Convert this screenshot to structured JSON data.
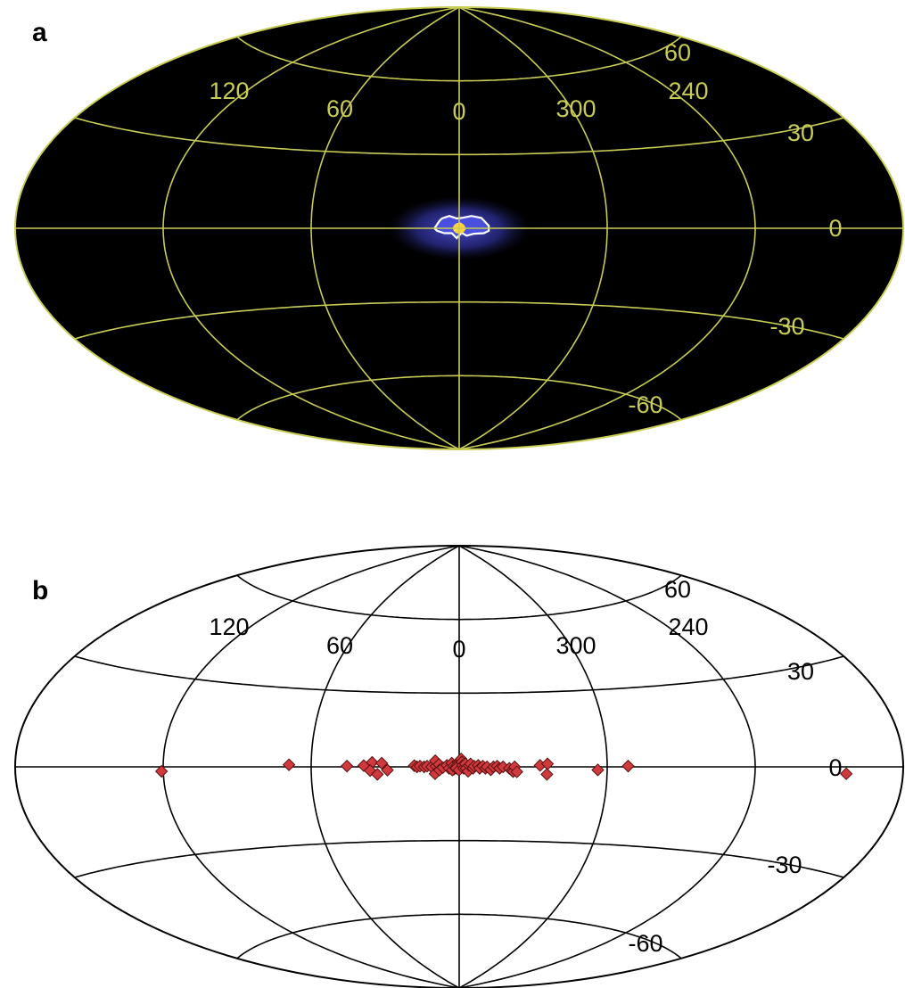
{
  "chart_data": [
    {
      "type": "heatmap",
      "panel_label": "a",
      "projection": "aitoff",
      "background": "#000000",
      "grid_color": "#c8cc55",
      "longitude_labels": [
        "120",
        "60",
        "0",
        "300",
        "240"
      ],
      "latitude_labels": [
        "60",
        "30",
        "0",
        "-30",
        "-60"
      ],
      "longitude_grid": [
        -180,
        -120,
        -60,
        0,
        60,
        120,
        180
      ],
      "latitude_grid": [
        -60,
        -30,
        0,
        30,
        60
      ],
      "emission": {
        "center": [
          0,
          0
        ],
        "outer_contour": [
          [
            8,
            3
          ],
          [
            7,
            4
          ],
          [
            4,
            5
          ],
          [
            1,
            4
          ],
          [
            -1,
            4.2
          ],
          [
            -5,
            5
          ],
          [
            -9,
            4.2
          ],
          [
            -12,
            1
          ],
          [
            -12,
            -1
          ],
          [
            -10,
            -2
          ],
          [
            -6,
            -2.2
          ],
          [
            -3,
            -3
          ],
          [
            -1,
            -1.8
          ],
          [
            1,
            -4
          ],
          [
            3,
            -2
          ],
          [
            6,
            -2
          ],
          [
            9,
            -1
          ],
          [
            10,
            0
          ]
        ],
        "inner_contour": [
          [
            1.5,
            0
          ],
          [
            1.8,
            1
          ],
          [
            0.8,
            1.8
          ],
          [
            -0.5,
            2
          ],
          [
            -1.6,
            1.2
          ],
          [
            -2.3,
            -0.3
          ],
          [
            -1.2,
            -1.3
          ],
          [
            0.4,
            -1.1
          ]
        ],
        "colors": [
          "#4d52e6",
          "#ffffff",
          "#ff9a20",
          "#ffd23a"
        ]
      },
      "title": "",
      "xlabel": "",
      "ylabel": ""
    },
    {
      "type": "scatter",
      "panel_label": "b",
      "projection": "aitoff",
      "background": "#ffffff",
      "grid_color": "#000000",
      "marker": "diamond",
      "marker_color": "#d0393e",
      "longitude_labels": [
        "120",
        "60",
        "0",
        "300",
        "240"
      ],
      "latitude_labels": [
        "60",
        "30",
        "0",
        "-30",
        "-60"
      ],
      "longitude_grid": [
        -180,
        -120,
        -60,
        0,
        60,
        120,
        180
      ],
      "latitude_grid": [
        -60,
        -30,
        0,
        30,
        60
      ],
      "points": [
        [
          120.7,
          -1.5
        ],
        [
          69.0,
          0.8
        ],
        [
          45.5,
          0.3
        ],
        [
          38.7,
          0.5
        ],
        [
          35.3,
          1.8
        ],
        [
          31.4,
          1.5
        ],
        [
          36.1,
          -1.5
        ],
        [
          33.2,
          -3.0
        ],
        [
          29.1,
          -1.3
        ],
        [
          18.2,
          0.5
        ],
        [
          17.1,
          0.0
        ],
        [
          15.9,
          0.3
        ],
        [
          14.2,
          0.0
        ],
        [
          13.0,
          0.3
        ],
        [
          11.2,
          0.0
        ],
        [
          9.4,
          0.3
        ],
        [
          9.7,
          2.5
        ],
        [
          8.2,
          1.0
        ],
        [
          9.8,
          -2.8
        ],
        [
          8.0,
          -1.3
        ],
        [
          6.6,
          -0.3
        ],
        [
          5.0,
          0.6
        ],
        [
          4.1,
          -0.6
        ],
        [
          3.0,
          1.5
        ],
        [
          2.2,
          -1.0
        ],
        [
          2.8,
          -1.3
        ],
        [
          2.3,
          0.3
        ],
        [
          1.4,
          0.0
        ],
        [
          0.4,
          1.8
        ],
        [
          0.8,
          0.6
        ],
        [
          1.2,
          -0.6
        ],
        [
          0.1,
          -1.3
        ],
        [
          -0.8,
          3.2
        ],
        [
          -1.1,
          2.0
        ],
        [
          -1.4,
          0.6
        ],
        [
          -1.8,
          -0.6
        ],
        [
          -2.5,
          1.2
        ],
        [
          -2.8,
          -0.6
        ],
        [
          -3.6,
          -1.8
        ],
        [
          -4.0,
          0.6
        ],
        [
          -4.6,
          1.2
        ],
        [
          -5.6,
          -0.6
        ],
        [
          -6.1,
          0.3
        ],
        [
          -7.7,
          0.6
        ],
        [
          -8.3,
          -0.6
        ],
        [
          -9.6,
          0.3
        ],
        [
          -10.6,
          -0.6
        ],
        [
          -11.3,
          0.0
        ],
        [
          -12.8,
          -1.2
        ],
        [
          -13.9,
          0.0
        ],
        [
          -15.4,
          0.3
        ],
        [
          -16.4,
          -0.6
        ],
        [
          -17.8,
          0.0
        ],
        [
          -20.3,
          -0.6
        ],
        [
          -21.4,
          -1.5
        ],
        [
          -21.9,
          -1.9
        ],
        [
          -22.5,
          0.0
        ],
        [
          -23.4,
          -2.0
        ],
        [
          -32.8,
          0.6
        ],
        [
          -35.8,
          1.2
        ],
        [
          -35.6,
          -3.0
        ],
        [
          -56.2,
          -1.2
        ],
        [
          -68.5,
          0.3
        ],
        [
          -157.0,
          -2.0
        ]
      ],
      "title": "",
      "xlabel": "",
      "ylabel": ""
    }
  ]
}
